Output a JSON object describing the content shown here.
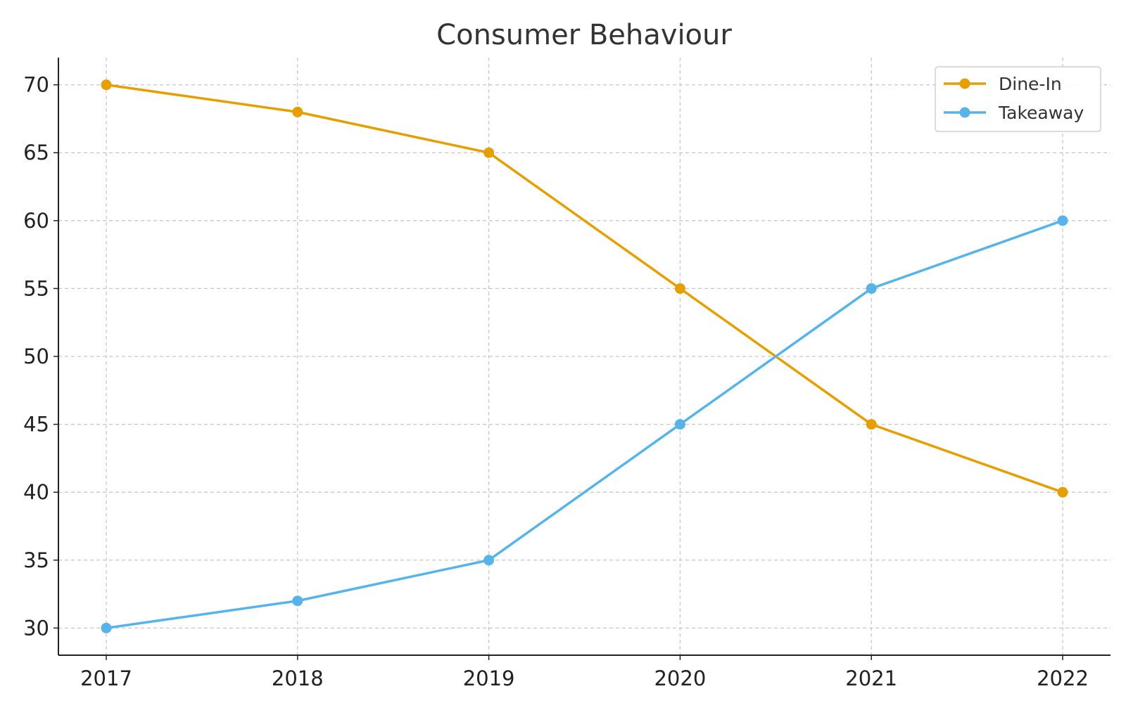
{
  "chart_data": {
    "type": "line",
    "title": "Consumer Behaviour",
    "xlabel": "",
    "ylabel": "",
    "x": [
      "2017",
      "2018",
      "2019",
      "2020",
      "2021",
      "2022"
    ],
    "y_ticks": [
      30,
      35,
      40,
      45,
      50,
      55,
      60,
      65,
      70
    ],
    "ylim": [
      28,
      72
    ],
    "grid": true,
    "legend_position": "top-right",
    "series": [
      {
        "name": "Dine-In",
        "values": [
          70,
          68,
          65,
          55,
          45,
          40
        ],
        "color": "#E69F00"
      },
      {
        "name": "Takeaway",
        "values": [
          30,
          32,
          35,
          45,
          55,
          60
        ],
        "color": "#56B4E9"
      }
    ]
  }
}
